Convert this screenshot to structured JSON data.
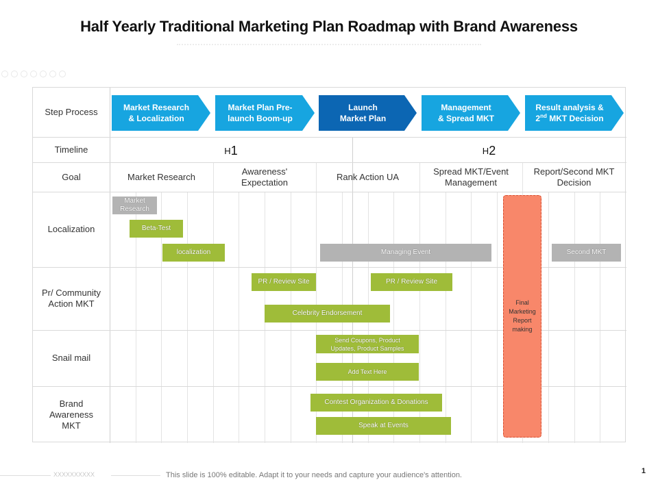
{
  "title": "Half Yearly Traditional Marketing Plan Roadmap with Brand Awareness",
  "rows": {
    "step_process": "Step Process",
    "timeline": "Timeline",
    "goal": "Goal",
    "localization": "Localization",
    "pr_community": "Pr/ Community Action MKT",
    "snail_mail": "Snail mail",
    "brand_awareness": "Brand Awareness MKT"
  },
  "steps": [
    {
      "line1": "Market Research",
      "line2": "& Localization",
      "color": "#17a5e0"
    },
    {
      "line1": "Market Plan Pre-",
      "line2": "launch Boom-up",
      "color": "#17a5e0"
    },
    {
      "line1": "Launch",
      "line2": "Market Plan",
      "color": "#0c66b3"
    },
    {
      "line1": "Management",
      "line2": "& Spread MKT",
      "color": "#17a5e0"
    },
    {
      "line1": "Result analysis &",
      "line2_pre": "2",
      "line2_sup": "nd",
      "line2_post": " MKT Decision",
      "color": "#17a5e0"
    }
  ],
  "timeline": {
    "h1_prefix": "H",
    "h1_num": "1",
    "h2_prefix": "H",
    "h2_num": "2"
  },
  "goals": [
    "Market Research",
    "Awareness' Expectation",
    "Rank Action UA",
    "Spread MKT/Event Management",
    "Report/Second MKT Decision"
  ],
  "bars": {
    "market_research": "Market Research",
    "beta_test": "Beta-Test",
    "localization": "localization",
    "managing_event": "Managing Event",
    "second_mkt": "Second MKT",
    "pr_review_1": "PR / Review Site",
    "pr_review_2": "PR / Review Site",
    "celebrity": "Celebrity Endorsement",
    "coupons": "Send Coupons, Product Updates, Product Samples",
    "add_text": "Add Text Here",
    "contest": "Contest Organization & Donations",
    "speak": "Speak at Events"
  },
  "final_report": "Final Marketing Report making",
  "colors": {
    "step_blue": "#17a5e0",
    "step_dark_blue": "#0c66b3",
    "green_bar": "#9fbc39",
    "gray_bar": "#b3b3b3",
    "final_report": "#f8876a"
  },
  "footer": {
    "placeholder": "XXXXXXXXXX",
    "note": "This slide is 100% editable. Adapt it to your needs and capture your audience's attention.",
    "page": "1"
  }
}
